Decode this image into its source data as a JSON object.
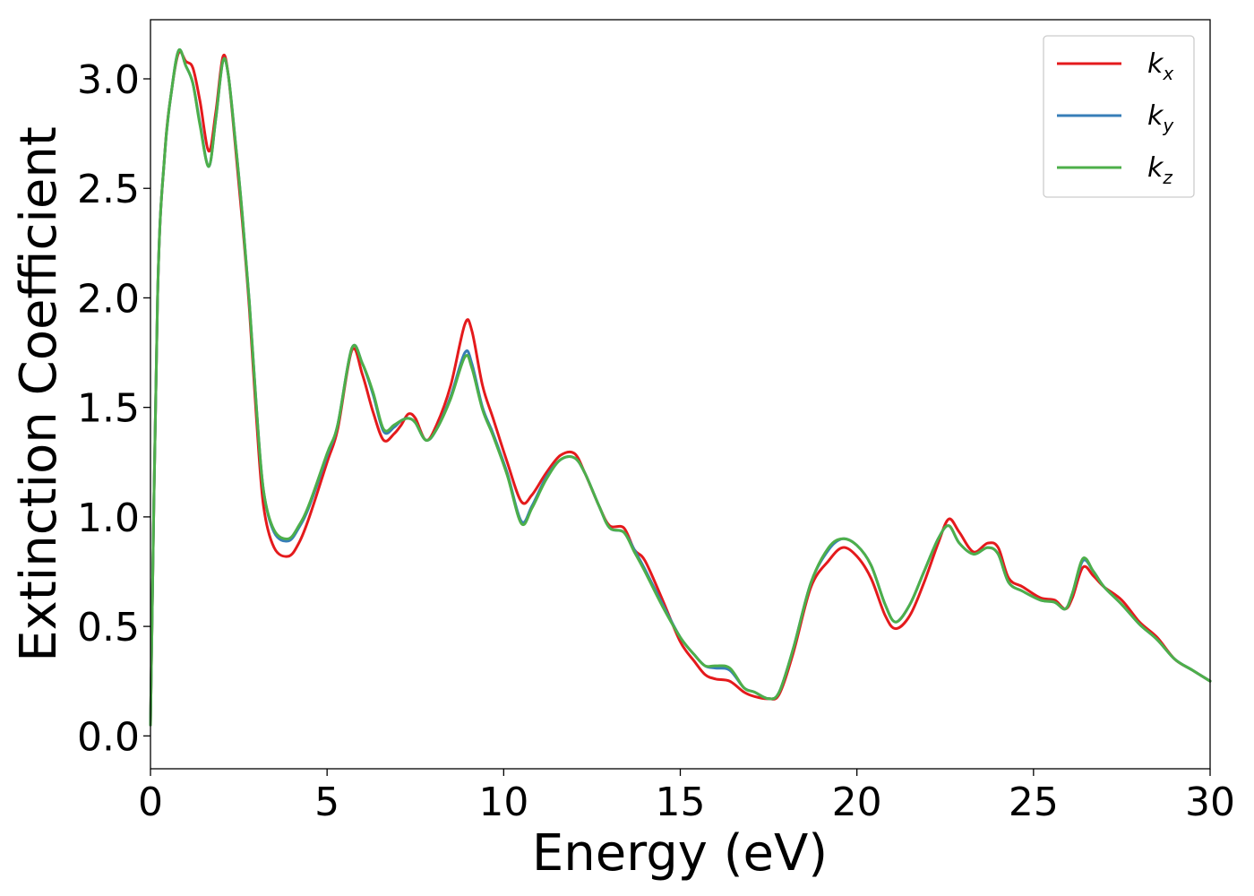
{
  "chart_data": {
    "type": "line",
    "title": "",
    "xlabel": "Energy (eV)",
    "ylabel": "Extinction Coefficient",
    "xlim": [
      0,
      30
    ],
    "ylim": [
      -0.15,
      3.27
    ],
    "xticks": [
      0,
      5,
      10,
      15,
      20,
      25,
      30
    ],
    "xtick_labels": [
      "0",
      "5",
      "10",
      "15",
      "20",
      "25",
      "30"
    ],
    "yticks": [
      0.0,
      0.5,
      1.0,
      1.5,
      2.0,
      2.5,
      3.0
    ],
    "ytick_labels": [
      "0.0",
      "0.5",
      "1.0",
      "1.5",
      "2.0",
      "2.5",
      "3.0"
    ],
    "grid": false,
    "legend_position": "top-right",
    "series": [
      {
        "name": "kx",
        "label_main": "k",
        "label_sub": "x",
        "color": "#e41a1c",
        "points": [
          [
            0,
            0.05
          ],
          [
            0.2,
            2.0
          ],
          [
            0.4,
            2.65
          ],
          [
            0.6,
            2.95
          ],
          [
            0.8,
            3.12
          ],
          [
            1.0,
            3.08
          ],
          [
            1.2,
            3.05
          ],
          [
            1.4,
            2.9
          ],
          [
            1.65,
            2.67
          ],
          [
            1.85,
            2.85
          ],
          [
            2.05,
            3.1
          ],
          [
            2.2,
            3.02
          ],
          [
            2.4,
            2.7
          ],
          [
            2.6,
            2.35
          ],
          [
            2.8,
            1.95
          ],
          [
            3.0,
            1.45
          ],
          [
            3.2,
            1.05
          ],
          [
            3.5,
            0.86
          ],
          [
            3.9,
            0.82
          ],
          [
            4.2,
            0.88
          ],
          [
            4.5,
            1.0
          ],
          [
            5.0,
            1.25
          ],
          [
            5.3,
            1.4
          ],
          [
            5.7,
            1.76
          ],
          [
            6.0,
            1.65
          ],
          [
            6.3,
            1.48
          ],
          [
            6.6,
            1.35
          ],
          [
            6.9,
            1.38
          ],
          [
            7.1,
            1.42
          ],
          [
            7.3,
            1.47
          ],
          [
            7.5,
            1.45
          ],
          [
            7.8,
            1.35
          ],
          [
            8.1,
            1.42
          ],
          [
            8.5,
            1.6
          ],
          [
            8.9,
            1.88
          ],
          [
            9.1,
            1.85
          ],
          [
            9.4,
            1.6
          ],
          [
            9.7,
            1.45
          ],
          [
            10.1,
            1.25
          ],
          [
            10.5,
            1.07
          ],
          [
            10.8,
            1.1
          ],
          [
            11.2,
            1.2
          ],
          [
            11.6,
            1.28
          ],
          [
            12.0,
            1.29
          ],
          [
            12.3,
            1.2
          ],
          [
            12.7,
            1.05
          ],
          [
            13.0,
            0.96
          ],
          [
            13.4,
            0.95
          ],
          [
            13.7,
            0.85
          ],
          [
            14.0,
            0.8
          ],
          [
            14.5,
            0.62
          ],
          [
            15.0,
            0.43
          ],
          [
            15.4,
            0.34
          ],
          [
            15.7,
            0.28
          ],
          [
            16.0,
            0.26
          ],
          [
            16.4,
            0.25
          ],
          [
            16.8,
            0.2
          ],
          [
            17.1,
            0.18
          ],
          [
            17.5,
            0.17
          ],
          [
            17.8,
            0.19
          ],
          [
            18.2,
            0.38
          ],
          [
            18.7,
            0.68
          ],
          [
            19.2,
            0.8
          ],
          [
            19.6,
            0.86
          ],
          [
            20.0,
            0.82
          ],
          [
            20.4,
            0.72
          ],
          [
            20.8,
            0.55
          ],
          [
            21.1,
            0.49
          ],
          [
            21.5,
            0.55
          ],
          [
            21.9,
            0.7
          ],
          [
            22.3,
            0.88
          ],
          [
            22.6,
            0.99
          ],
          [
            22.9,
            0.93
          ],
          [
            23.3,
            0.84
          ],
          [
            23.7,
            0.88
          ],
          [
            24.0,
            0.86
          ],
          [
            24.3,
            0.72
          ],
          [
            24.7,
            0.68
          ],
          [
            25.2,
            0.63
          ],
          [
            25.6,
            0.62
          ],
          [
            25.9,
            0.58
          ],
          [
            26.1,
            0.63
          ],
          [
            26.4,
            0.77
          ],
          [
            26.7,
            0.73
          ],
          [
            27.0,
            0.68
          ],
          [
            27.5,
            0.62
          ],
          [
            28.0,
            0.52
          ],
          [
            28.5,
            0.45
          ],
          [
            29.0,
            0.35
          ],
          [
            29.5,
            0.3
          ],
          [
            30.0,
            0.25
          ]
        ]
      },
      {
        "name": "ky",
        "label_main": "k",
        "label_sub": "y",
        "color": "#377eb8",
        "points": [
          [
            0,
            0.05
          ],
          [
            0.2,
            2.0
          ],
          [
            0.4,
            2.65
          ],
          [
            0.6,
            2.95
          ],
          [
            0.8,
            3.13
          ],
          [
            1.0,
            3.06
          ],
          [
            1.2,
            2.98
          ],
          [
            1.4,
            2.8
          ],
          [
            1.65,
            2.6
          ],
          [
            1.85,
            2.82
          ],
          [
            2.05,
            3.08
          ],
          [
            2.2,
            3.02
          ],
          [
            2.4,
            2.72
          ],
          [
            2.6,
            2.38
          ],
          [
            2.8,
            1.98
          ],
          [
            3.0,
            1.5
          ],
          [
            3.2,
            1.12
          ],
          [
            3.5,
            0.93
          ],
          [
            3.9,
            0.89
          ],
          [
            4.2,
            0.95
          ],
          [
            4.5,
            1.05
          ],
          [
            5.0,
            1.28
          ],
          [
            5.3,
            1.42
          ],
          [
            5.7,
            1.77
          ],
          [
            6.0,
            1.7
          ],
          [
            6.3,
            1.56
          ],
          [
            6.6,
            1.39
          ],
          [
            6.9,
            1.41
          ],
          [
            7.1,
            1.44
          ],
          [
            7.3,
            1.45
          ],
          [
            7.5,
            1.43
          ],
          [
            7.8,
            1.35
          ],
          [
            8.1,
            1.4
          ],
          [
            8.5,
            1.55
          ],
          [
            8.9,
            1.75
          ],
          [
            9.1,
            1.7
          ],
          [
            9.4,
            1.5
          ],
          [
            9.7,
            1.38
          ],
          [
            10.1,
            1.2
          ],
          [
            10.5,
            0.98
          ],
          [
            10.8,
            1.05
          ],
          [
            11.2,
            1.18
          ],
          [
            11.6,
            1.26
          ],
          [
            12.0,
            1.27
          ],
          [
            12.3,
            1.2
          ],
          [
            12.7,
            1.05
          ],
          [
            13.0,
            0.95
          ],
          [
            13.4,
            0.93
          ],
          [
            13.7,
            0.85
          ],
          [
            14.0,
            0.76
          ],
          [
            14.5,
            0.6
          ],
          [
            15.0,
            0.45
          ],
          [
            15.4,
            0.37
          ],
          [
            15.7,
            0.32
          ],
          [
            16.0,
            0.31
          ],
          [
            16.4,
            0.3
          ],
          [
            16.8,
            0.22
          ],
          [
            17.1,
            0.2
          ],
          [
            17.5,
            0.17
          ],
          [
            17.8,
            0.2
          ],
          [
            18.2,
            0.4
          ],
          [
            18.7,
            0.7
          ],
          [
            19.2,
            0.85
          ],
          [
            19.6,
            0.9
          ],
          [
            20.0,
            0.87
          ],
          [
            20.4,
            0.78
          ],
          [
            20.8,
            0.6
          ],
          [
            21.1,
            0.52
          ],
          [
            21.5,
            0.6
          ],
          [
            21.9,
            0.75
          ],
          [
            22.3,
            0.9
          ],
          [
            22.6,
            0.96
          ],
          [
            22.9,
            0.88
          ],
          [
            23.3,
            0.83
          ],
          [
            23.7,
            0.86
          ],
          [
            24.0,
            0.83
          ],
          [
            24.3,
            0.7
          ],
          [
            24.7,
            0.66
          ],
          [
            25.2,
            0.62
          ],
          [
            25.6,
            0.61
          ],
          [
            25.9,
            0.58
          ],
          [
            26.1,
            0.65
          ],
          [
            26.4,
            0.8
          ],
          [
            26.7,
            0.75
          ],
          [
            27.0,
            0.68
          ],
          [
            27.5,
            0.6
          ],
          [
            28.0,
            0.51
          ],
          [
            28.5,
            0.44
          ],
          [
            29.0,
            0.35
          ],
          [
            29.5,
            0.3
          ],
          [
            30.0,
            0.25
          ]
        ]
      },
      {
        "name": "kz",
        "label_main": "k",
        "label_sub": "z",
        "color": "#4daf4a",
        "points": [
          [
            0,
            0.05
          ],
          [
            0.2,
            2.0
          ],
          [
            0.4,
            2.65
          ],
          [
            0.6,
            2.95
          ],
          [
            0.8,
            3.13
          ],
          [
            1.0,
            3.06
          ],
          [
            1.2,
            2.98
          ],
          [
            1.4,
            2.79
          ],
          [
            1.65,
            2.6
          ],
          [
            1.85,
            2.82
          ],
          [
            2.05,
            3.08
          ],
          [
            2.2,
            3.02
          ],
          [
            2.4,
            2.72
          ],
          [
            2.6,
            2.38
          ],
          [
            2.8,
            1.98
          ],
          [
            3.0,
            1.5
          ],
          [
            3.2,
            1.12
          ],
          [
            3.5,
            0.94
          ],
          [
            3.9,
            0.9
          ],
          [
            4.2,
            0.96
          ],
          [
            4.5,
            1.06
          ],
          [
            5.0,
            1.29
          ],
          [
            5.3,
            1.42
          ],
          [
            5.7,
            1.77
          ],
          [
            6.0,
            1.7
          ],
          [
            6.3,
            1.57
          ],
          [
            6.6,
            1.4
          ],
          [
            6.9,
            1.42
          ],
          [
            7.1,
            1.44
          ],
          [
            7.3,
            1.45
          ],
          [
            7.5,
            1.43
          ],
          [
            7.8,
            1.35
          ],
          [
            8.1,
            1.4
          ],
          [
            8.5,
            1.54
          ],
          [
            8.9,
            1.73
          ],
          [
            9.1,
            1.68
          ],
          [
            9.4,
            1.49
          ],
          [
            9.7,
            1.37
          ],
          [
            10.1,
            1.19
          ],
          [
            10.5,
            0.97
          ],
          [
            10.8,
            1.04
          ],
          [
            11.2,
            1.17
          ],
          [
            11.6,
            1.26
          ],
          [
            12.0,
            1.27
          ],
          [
            12.3,
            1.2
          ],
          [
            12.7,
            1.05
          ],
          [
            13.0,
            0.95
          ],
          [
            13.4,
            0.93
          ],
          [
            13.7,
            0.84
          ],
          [
            14.0,
            0.75
          ],
          [
            14.5,
            0.59
          ],
          [
            15.0,
            0.45
          ],
          [
            15.4,
            0.37
          ],
          [
            15.7,
            0.32
          ],
          [
            16.0,
            0.32
          ],
          [
            16.4,
            0.31
          ],
          [
            16.8,
            0.22
          ],
          [
            17.1,
            0.2
          ],
          [
            17.5,
            0.17
          ],
          [
            17.8,
            0.2
          ],
          [
            18.2,
            0.4
          ],
          [
            18.7,
            0.7
          ],
          [
            19.2,
            0.86
          ],
          [
            19.6,
            0.9
          ],
          [
            20.0,
            0.87
          ],
          [
            20.4,
            0.78
          ],
          [
            20.8,
            0.6
          ],
          [
            21.1,
            0.52
          ],
          [
            21.5,
            0.6
          ],
          [
            21.9,
            0.75
          ],
          [
            22.3,
            0.9
          ],
          [
            22.6,
            0.96
          ],
          [
            22.9,
            0.88
          ],
          [
            23.3,
            0.83
          ],
          [
            23.7,
            0.86
          ],
          [
            24.0,
            0.83
          ],
          [
            24.3,
            0.7
          ],
          [
            24.7,
            0.66
          ],
          [
            25.2,
            0.62
          ],
          [
            25.6,
            0.61
          ],
          [
            25.9,
            0.58
          ],
          [
            26.1,
            0.65
          ],
          [
            26.4,
            0.81
          ],
          [
            26.7,
            0.75
          ],
          [
            27.0,
            0.68
          ],
          [
            27.5,
            0.6
          ],
          [
            28.0,
            0.51
          ],
          [
            28.5,
            0.44
          ],
          [
            29.0,
            0.35
          ],
          [
            29.5,
            0.3
          ],
          [
            30.0,
            0.25
          ]
        ]
      }
    ]
  }
}
